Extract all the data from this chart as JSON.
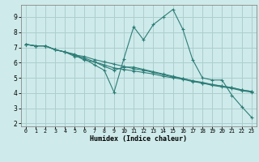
{
  "xlabel": "Humidex (Indice chaleur)",
  "ylabel": "",
  "bg_color": "#ceeaea",
  "line_color": "#2d7d78",
  "grid_color": "#aecece",
  "xlim": [
    -0.5,
    23.5
  ],
  "ylim": [
    1.8,
    9.8
  ],
  "xticks": [
    0,
    1,
    2,
    3,
    4,
    5,
    6,
    7,
    8,
    9,
    10,
    11,
    12,
    13,
    14,
    15,
    16,
    17,
    18,
    19,
    20,
    21,
    22,
    23
  ],
  "yticks": [
    2,
    3,
    4,
    5,
    6,
    7,
    8,
    9
  ],
  "lines": [
    {
      "x": [
        0,
        1,
        2,
        3,
        4,
        5,
        6,
        7,
        8,
        9,
        10,
        11,
        12,
        13,
        14,
        15,
        16,
        17,
        18,
        19,
        20,
        21,
        22,
        23
      ],
      "y": [
        7.2,
        7.1,
        7.1,
        6.85,
        6.7,
        6.55,
        6.25,
        5.85,
        5.5,
        4.05,
        6.25,
        8.35,
        7.5,
        8.5,
        9.0,
        9.5,
        8.2,
        6.2,
        5.0,
        4.85,
        4.85,
        3.85,
        3.1,
        2.4
      ]
    },
    {
      "x": [
        0,
        1,
        2,
        3,
        4,
        5,
        6,
        7,
        8,
        9,
        10,
        11,
        12,
        13,
        14,
        15,
        16,
        17,
        18,
        19,
        20,
        21,
        22,
        23
      ],
      "y": [
        7.2,
        7.1,
        7.1,
        6.85,
        6.7,
        6.5,
        6.4,
        6.2,
        6.05,
        5.9,
        5.75,
        5.6,
        5.5,
        5.35,
        5.2,
        5.05,
        4.95,
        4.8,
        4.65,
        4.55,
        4.45,
        4.35,
        4.2,
        4.1
      ]
    },
    {
      "x": [
        0,
        1,
        2,
        3,
        4,
        5,
        6,
        7,
        8,
        9,
        10,
        11,
        12,
        13,
        14,
        15,
        16,
        17,
        18,
        19,
        20,
        21,
        22,
        23
      ],
      "y": [
        7.2,
        7.1,
        7.1,
        6.85,
        6.7,
        6.5,
        6.15,
        6.05,
        5.75,
        5.5,
        5.7,
        5.7,
        5.55,
        5.4,
        5.25,
        5.1,
        4.95,
        4.8,
        4.7,
        4.55,
        4.45,
        4.35,
        4.2,
        4.1
      ]
    },
    {
      "x": [
        0,
        1,
        2,
        3,
        4,
        5,
        6,
        7,
        8,
        9,
        10,
        11,
        12,
        13,
        14,
        15,
        16,
        17,
        18,
        19,
        20,
        21,
        22,
        23
      ],
      "y": [
        7.2,
        7.1,
        7.1,
        6.85,
        6.7,
        6.4,
        6.3,
        6.05,
        5.85,
        5.65,
        5.55,
        5.45,
        5.35,
        5.25,
        5.1,
        5.0,
        4.9,
        4.75,
        4.65,
        4.5,
        4.4,
        4.3,
        4.15,
        4.05
      ]
    }
  ]
}
